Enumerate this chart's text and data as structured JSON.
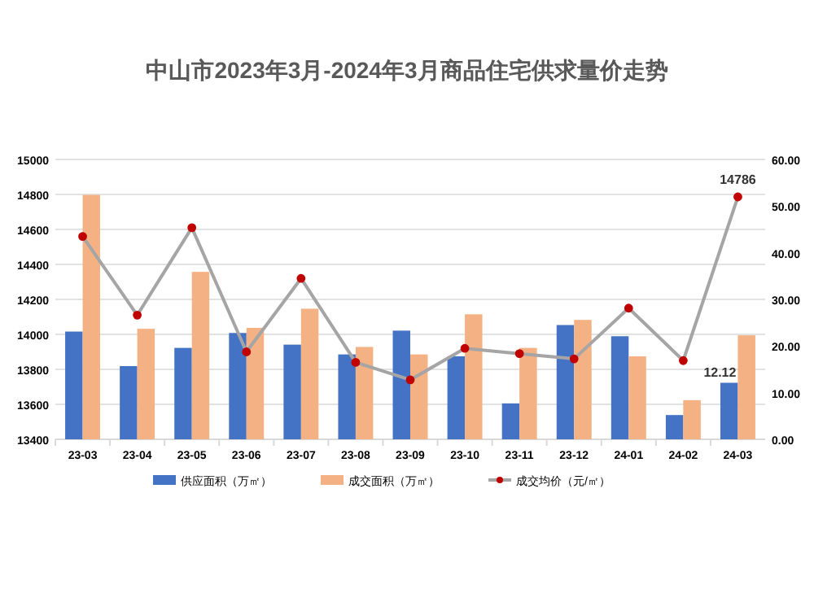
{
  "chart_data": {
    "type": "bar",
    "title": "中山市2023年3月-2024年3月商品住宅供求量价走势",
    "categories": [
      "23-03",
      "23-04",
      "23-05",
      "23-06",
      "23-07",
      "23-08",
      "23-09",
      "23-10",
      "23-11",
      "23-12",
      "24-01",
      "24-02",
      "24-03"
    ],
    "series": [
      {
        "name": "供应面积（万㎡）",
        "color": "#4472c4",
        "axis": "y2",
        "values": [
          23.1,
          15.7,
          19.6,
          22.8,
          20.3,
          18.2,
          23.3,
          17.8,
          7.7,
          24.5,
          22.1,
          5.2,
          12.12
        ],
        "value_labels": [
          null,
          null,
          null,
          null,
          null,
          null,
          null,
          null,
          null,
          null,
          null,
          null,
          "12.12"
        ]
      },
      {
        "name": "成交面积（万㎡）",
        "color": "#f4b183",
        "axis": "y2",
        "values": [
          52.4,
          23.7,
          35.9,
          23.9,
          28.0,
          19.8,
          18.2,
          26.8,
          19.6,
          25.6,
          17.8,
          8.4,
          22.3
        ]
      },
      {
        "name": "成交均价（元/㎡）",
        "type": "line",
        "color": "#a5a5a5",
        "marker": "circle",
        "values": [
          14560,
          14110,
          14610,
          13900,
          14320,
          13840,
          13740,
          13920,
          13890,
          13860,
          14150,
          13850,
          14786
        ],
        "value_labels": [
          null,
          null,
          null,
          null,
          null,
          null,
          null,
          null,
          null,
          null,
          null,
          null,
          "14786"
        ]
      }
    ],
    "ylim": [
      13400,
      15000
    ],
    "yticks": [
      13400,
      13600,
      13800,
      14000,
      14200,
      14400,
      14600,
      14800,
      15000
    ],
    "y2lim": [
      0,
      60
    ],
    "y2ticks": [
      {
        "value": 0,
        "label": "0.00"
      },
      {
        "value": 10,
        "label": "10.00"
      },
      {
        "value": 20,
        "label": "20.00"
      },
      {
        "value": 30,
        "label": "30.00"
      },
      {
        "value": 40,
        "label": "40.00"
      },
      {
        "value": 50,
        "label": "50.00"
      },
      {
        "value": 60,
        "label": "60.00"
      }
    ],
    "grid": "y",
    "legend": "bottom"
  }
}
